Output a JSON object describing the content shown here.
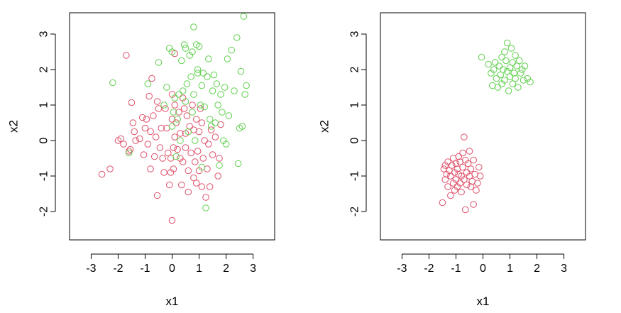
{
  "colors": {
    "group_a": "#DF536B",
    "group_b": "#61D04F"
  },
  "chart_data": [
    {
      "type": "scatter",
      "title": "",
      "xlabel": "x1",
      "ylabel": "x2",
      "xlim": [
        -3.8,
        3.8
      ],
      "ylim": [
        -2.8,
        3.6
      ],
      "xticks": [
        -3,
        -2,
        -1,
        0,
        1,
        2,
        3
      ],
      "yticks": [
        -2,
        -1,
        0,
        1,
        2,
        3
      ],
      "grid": false,
      "series": [
        {
          "color": "#DF536B",
          "points": [
            [
              -2.6,
              -0.95
            ],
            [
              -2.3,
              -0.8
            ],
            [
              -2.0,
              0.0
            ],
            [
              -1.9,
              0.05
            ],
            [
              -1.8,
              -0.1
            ],
            [
              -1.7,
              2.4
            ],
            [
              -1.6,
              -0.3
            ],
            [
              -1.55,
              -0.25
            ],
            [
              -1.5,
              1.07
            ],
            [
              -1.45,
              0.5
            ],
            [
              -1.4,
              0.25
            ],
            [
              -1.35,
              0.0
            ],
            [
              -1.2,
              0.05
            ],
            [
              -1.1,
              0.65
            ],
            [
              -1.05,
              -0.4
            ],
            [
              -1.0,
              0.35
            ],
            [
              -0.95,
              0.6
            ],
            [
              -0.9,
              -0.1
            ],
            [
              -0.85,
              1.25
            ],
            [
              -0.8,
              -0.8
            ],
            [
              -0.8,
              0.25
            ],
            [
              -0.75,
              1.75
            ],
            [
              -0.7,
              0.7
            ],
            [
              -0.65,
              -0.45
            ],
            [
              -0.6,
              0.1
            ],
            [
              -0.55,
              1.1
            ],
            [
              -0.55,
              -1.55
            ],
            [
              -0.5,
              0.9
            ],
            [
              -0.45,
              -0.2
            ],
            [
              -0.4,
              0.35
            ],
            [
              -0.35,
              -0.5
            ],
            [
              -0.3,
              -0.9
            ],
            [
              -0.25,
              0.9
            ],
            [
              -0.2,
              0.35
            ],
            [
              -0.15,
              -0.35
            ],
            [
              -0.1,
              -1.25
            ],
            [
              -0.05,
              -0.9
            ],
            [
              -0.05,
              -0.5
            ],
            [
              0.0,
              1.3
            ],
            [
              0.0,
              0.6
            ],
            [
              0.0,
              -2.25
            ],
            [
              0.05,
              -0.8
            ],
            [
              0.05,
              -0.2
            ],
            [
              0.1,
              0.1
            ],
            [
              0.1,
              1.0
            ],
            [
              0.1,
              2.45
            ],
            [
              0.15,
              0.5
            ],
            [
              0.2,
              -0.25
            ],
            [
              0.25,
              0.8
            ],
            [
              0.3,
              -0.5
            ],
            [
              0.3,
              0.2
            ],
            [
              0.35,
              -1.25
            ],
            [
              0.4,
              1.2
            ],
            [
              0.4,
              -0.6
            ],
            [
              0.45,
              0.9
            ],
            [
              0.5,
              0.2
            ],
            [
              0.5,
              -0.2
            ],
            [
              0.55,
              0.7
            ],
            [
              0.6,
              -0.85
            ],
            [
              0.6,
              -1.45
            ],
            [
              0.65,
              0.4
            ],
            [
              0.7,
              -0.35
            ],
            [
              0.75,
              1.0
            ],
            [
              0.8,
              -1.05
            ],
            [
              0.8,
              0.3
            ],
            [
              0.85,
              -0.6
            ],
            [
              0.9,
              0.6
            ],
            [
              0.9,
              -1.2
            ],
            [
              0.95,
              -0.3
            ],
            [
              1.0,
              0.25
            ],
            [
              1.0,
              -0.85
            ],
            [
              1.05,
              0.9
            ],
            [
              1.1,
              -1.3
            ],
            [
              1.1,
              0.5
            ],
            [
              1.15,
              -0.5
            ],
            [
              1.2,
              0.0
            ],
            [
              1.25,
              -1.6
            ],
            [
              1.3,
              -0.8
            ],
            [
              1.35,
              -0.1
            ],
            [
              1.4,
              -1.3
            ],
            [
              1.45,
              0.3
            ],
            [
              1.5,
              -0.4
            ],
            [
              1.6,
              0.1
            ],
            [
              1.7,
              -1.0
            ],
            [
              1.75,
              -0.5
            ],
            [
              1.8,
              0.45
            ]
          ]
        },
        {
          "color": "#61D04F",
          "points": [
            [
              -2.2,
              1.63
            ],
            [
              -1.6,
              -0.35
            ],
            [
              -0.9,
              1.6
            ],
            [
              -0.5,
              2.2
            ],
            [
              -0.3,
              1.0
            ],
            [
              -0.2,
              1.5
            ],
            [
              -0.1,
              2.6
            ],
            [
              0.0,
              2.5
            ],
            [
              0.0,
              0.4
            ],
            [
              0.05,
              0.8
            ],
            [
              0.1,
              1.2
            ],
            [
              0.15,
              -0.45
            ],
            [
              0.2,
              0.6
            ],
            [
              0.25,
              1.3
            ],
            [
              0.3,
              0.0
            ],
            [
              0.35,
              2.25
            ],
            [
              0.4,
              1.4
            ],
            [
              0.45,
              2.7
            ],
            [
              0.5,
              2.6
            ],
            [
              0.5,
              1.1
            ],
            [
              0.55,
              1.6
            ],
            [
              0.6,
              0.25
            ],
            [
              0.65,
              2.4
            ],
            [
              0.7,
              1.8
            ],
            [
              0.75,
              2.5
            ],
            [
              0.75,
              0.8
            ],
            [
              0.8,
              3.2
            ],
            [
              0.8,
              1.3
            ],
            [
              0.85,
              0.0
            ],
            [
              0.9,
              2.7
            ],
            [
              0.95,
              1.9
            ],
            [
              0.95,
              2.0
            ],
            [
              1.0,
              2.65
            ],
            [
              1.05,
              1.0
            ],
            [
              1.1,
              1.55
            ],
            [
              1.1,
              -0.75
            ],
            [
              1.15,
              1.9
            ],
            [
              1.2,
              0.95
            ],
            [
              1.25,
              -1.9
            ],
            [
              1.3,
              1.8
            ],
            [
              1.35,
              2.3
            ],
            [
              1.4,
              0.6
            ],
            [
              1.45,
              0.4
            ],
            [
              1.5,
              1.4
            ],
            [
              1.55,
              1.85
            ],
            [
              1.6,
              0.5
            ],
            [
              1.65,
              1.6
            ],
            [
              1.7,
              1.0
            ],
            [
              1.75,
              -0.7
            ],
            [
              1.8,
              1.3
            ],
            [
              1.85,
              0.8
            ],
            [
              1.9,
              0.0
            ],
            [
              1.95,
              1.5
            ],
            [
              2.0,
              -0.1
            ],
            [
              2.05,
              2.3
            ],
            [
              2.1,
              0.7
            ],
            [
              2.2,
              2.55
            ],
            [
              2.3,
              1.4
            ],
            [
              2.4,
              2.9
            ],
            [
              2.45,
              -0.65
            ],
            [
              2.5,
              0.35
            ],
            [
              2.55,
              1.95
            ],
            [
              2.6,
              0.4
            ],
            [
              2.65,
              3.5
            ],
            [
              2.7,
              1.3
            ],
            [
              2.75,
              1.55
            ]
          ]
        }
      ]
    },
    {
      "type": "scatter",
      "title": "",
      "xlabel": "x1",
      "ylabel": "x2",
      "xlim": [
        -3.8,
        3.8
      ],
      "ylim": [
        -2.8,
        3.6
      ],
      "xticks": [
        -3,
        -2,
        -1,
        0,
        1,
        2,
        3
      ],
      "yticks": [
        -2,
        -1,
        0,
        1,
        2,
        3
      ],
      "grid": false,
      "series": [
        {
          "color": "#DF536B",
          "points": [
            [
              -1.5,
              -1.75
            ],
            [
              -1.45,
              -0.8
            ],
            [
              -1.4,
              -1.1
            ],
            [
              -1.4,
              -0.7
            ],
            [
              -1.35,
              -0.95
            ],
            [
              -1.3,
              -1.3
            ],
            [
              -1.3,
              -0.6
            ],
            [
              -1.25,
              -0.85
            ],
            [
              -1.2,
              -1.55
            ],
            [
              -1.2,
              -1.0
            ],
            [
              -1.15,
              -0.7
            ],
            [
              -1.1,
              -1.2
            ],
            [
              -1.1,
              -0.5
            ],
            [
              -1.05,
              -0.9
            ],
            [
              -1.05,
              -1.4
            ],
            [
              -1.0,
              -0.65
            ],
            [
              -1.0,
              -1.1
            ],
            [
              -0.95,
              -0.8
            ],
            [
              -0.95,
              -1.3
            ],
            [
              -0.9,
              -0.45
            ],
            [
              -0.9,
              -0.95
            ],
            [
              -0.85,
              -1.2
            ],
            [
              -0.85,
              -0.6
            ],
            [
              -0.8,
              -1.0
            ],
            [
              -0.8,
              -1.45
            ],
            [
              -0.75,
              -0.35
            ],
            [
              -0.75,
              -0.75
            ],
            [
              -0.7,
              -1.1
            ],
            [
              -0.7,
              0.1
            ],
            [
              -0.65,
              -0.55
            ],
            [
              -0.65,
              -1.95
            ],
            [
              -0.6,
              -0.9
            ],
            [
              -0.6,
              -1.25
            ],
            [
              -0.55,
              -0.65
            ],
            [
              -0.5,
              -1.0
            ],
            [
              -0.5,
              -0.3
            ],
            [
              -0.45,
              -1.3
            ],
            [
              -0.45,
              -0.8
            ],
            [
              -0.4,
              -1.15
            ],
            [
              -0.35,
              -0.55
            ],
            [
              -0.35,
              -1.8
            ],
            [
              -0.3,
              -0.95
            ],
            [
              -0.25,
              -1.4
            ],
            [
              -0.2,
              -1.2
            ],
            [
              -0.15,
              -0.75
            ],
            [
              -0.1,
              -1.0
            ]
          ]
        },
        {
          "color": "#61D04F",
          "points": [
            [
              -0.05,
              2.35
            ],
            [
              0.2,
              2.15
            ],
            [
              0.3,
              1.9
            ],
            [
              0.35,
              1.55
            ],
            [
              0.4,
              2.0
            ],
            [
              0.45,
              2.2
            ],
            [
              0.5,
              1.75
            ],
            [
              0.55,
              1.5
            ],
            [
              0.6,
              2.1
            ],
            [
              0.65,
              1.85
            ],
            [
              0.7,
              2.35
            ],
            [
              0.7,
              1.6
            ],
            [
              0.75,
              2.0
            ],
            [
              0.8,
              2.5
            ],
            [
              0.8,
              1.7
            ],
            [
              0.85,
              2.25
            ],
            [
              0.9,
              1.95
            ],
            [
              0.9,
              2.75
            ],
            [
              0.95,
              1.4
            ],
            [
              1.0,
              2.05
            ],
            [
              1.0,
              1.8
            ],
            [
              1.05,
              2.6
            ],
            [
              1.1,
              2.2
            ],
            [
              1.1,
              1.6
            ],
            [
              1.15,
              1.9
            ],
            [
              1.2,
              2.4
            ],
            [
              1.2,
              1.75
            ],
            [
              1.25,
              2.1
            ],
            [
              1.3,
              1.5
            ],
            [
              1.35,
              2.25
            ],
            [
              1.4,
              1.9
            ],
            [
              1.45,
              2.0
            ],
            [
              1.5,
              1.7
            ],
            [
              1.55,
              2.1
            ],
            [
              1.65,
              1.75
            ],
            [
              1.75,
              1.65
            ]
          ]
        }
      ]
    }
  ]
}
